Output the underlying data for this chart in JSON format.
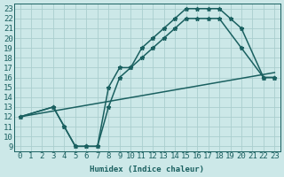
{
  "xlabel": "Humidex (Indice chaleur)",
  "xlim": [
    -0.5,
    23.5
  ],
  "ylim": [
    8.5,
    23.5
  ],
  "yticks": [
    9,
    10,
    11,
    12,
    13,
    14,
    15,
    16,
    17,
    18,
    19,
    20,
    21,
    22,
    23
  ],
  "xticks": [
    0,
    1,
    2,
    3,
    4,
    5,
    6,
    7,
    8,
    9,
    10,
    11,
    12,
    13,
    14,
    15,
    16,
    17,
    18,
    19,
    20,
    21,
    22,
    23
  ],
  "bg_color": "#cce8e8",
  "grid_color": "#aacece",
  "line_color": "#1a6060",
  "line1_x": [
    0,
    3,
    4,
    5,
    6,
    7,
    8,
    9,
    10,
    11,
    12,
    13,
    14,
    15,
    16,
    17,
    18,
    19,
    20,
    22,
    23
  ],
  "line1_y": [
    12,
    13,
    11,
    9,
    9,
    9,
    15,
    17,
    17,
    19,
    20,
    21,
    22,
    23,
    23,
    23,
    23,
    22,
    21,
    16,
    16
  ],
  "line2_x": [
    0,
    3,
    4,
    5,
    6,
    7,
    8,
    9,
    10,
    11,
    12,
    13,
    14,
    15,
    16,
    17,
    18,
    20,
    22,
    23
  ],
  "line2_y": [
    12,
    13,
    11,
    9,
    9,
    9,
    13,
    16,
    17,
    18,
    19,
    20,
    21,
    22,
    22,
    22,
    22,
    19,
    16,
    16
  ],
  "line3_x": [
    0,
    23
  ],
  "line3_y": [
    12,
    16.5
  ],
  "markersize": 3.5,
  "linewidth": 1.1,
  "font_size": 6.5
}
